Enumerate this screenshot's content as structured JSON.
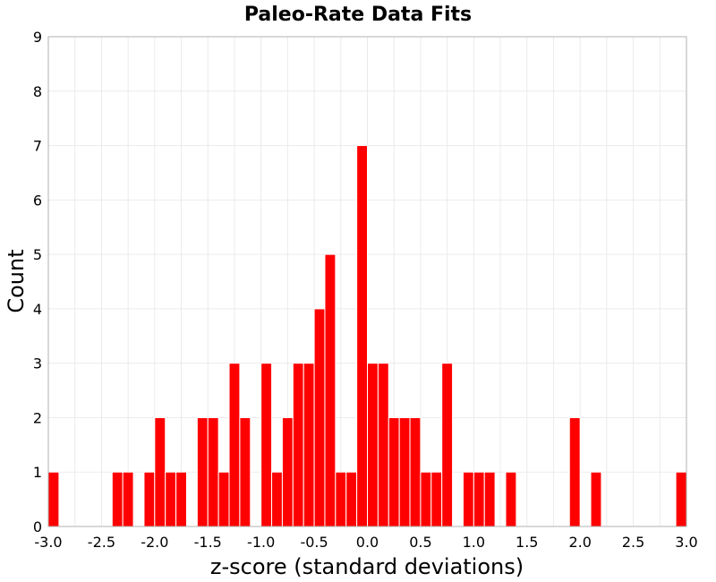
{
  "chart_data": {
    "type": "bar",
    "title": "Paleo-Rate Data Fits",
    "xlabel": "z-score (standard deviations)",
    "ylabel": "Count",
    "xlim": [
      -3.0,
      3.0
    ],
    "ylim": [
      0,
      9
    ],
    "bar_color": "#ff0000",
    "grid": true,
    "bin_width": 0.1,
    "x_ticks": [
      "-3.0",
      "-2.5",
      "-2.0",
      "-1.5",
      "-1.0",
      "-0.5",
      "0.0",
      "0.5",
      "1.0",
      "1.5",
      "2.0",
      "2.5",
      "3.0"
    ],
    "y_ticks": [
      "0",
      "1",
      "2",
      "3",
      "4",
      "5",
      "6",
      "7",
      "8",
      "9"
    ],
    "bins": [
      {
        "x": -2.95,
        "count": 1
      },
      {
        "x": -2.35,
        "count": 1
      },
      {
        "x": -2.25,
        "count": 1
      },
      {
        "x": -2.05,
        "count": 1
      },
      {
        "x": -1.95,
        "count": 2
      },
      {
        "x": -1.85,
        "count": 1
      },
      {
        "x": -1.75,
        "count": 1
      },
      {
        "x": -1.55,
        "count": 2
      },
      {
        "x": -1.45,
        "count": 2
      },
      {
        "x": -1.35,
        "count": 1
      },
      {
        "x": -1.25,
        "count": 3
      },
      {
        "x": -1.15,
        "count": 2
      },
      {
        "x": -0.95,
        "count": 3
      },
      {
        "x": -0.85,
        "count": 1
      },
      {
        "x": -0.75,
        "count": 2
      },
      {
        "x": -0.65,
        "count": 3
      },
      {
        "x": -0.55,
        "count": 3
      },
      {
        "x": -0.45,
        "count": 4
      },
      {
        "x": -0.35,
        "count": 5
      },
      {
        "x": -0.25,
        "count": 1
      },
      {
        "x": -0.15,
        "count": 1
      },
      {
        "x": -0.05,
        "count": 7
      },
      {
        "x": 0.05,
        "count": 3
      },
      {
        "x": 0.15,
        "count": 3
      },
      {
        "x": 0.25,
        "count": 2
      },
      {
        "x": 0.35,
        "count": 2
      },
      {
        "x": 0.45,
        "count": 2
      },
      {
        "x": 0.55,
        "count": 1
      },
      {
        "x": 0.65,
        "count": 1
      },
      {
        "x": 0.75,
        "count": 3
      },
      {
        "x": 0.95,
        "count": 1
      },
      {
        "x": 1.05,
        "count": 1
      },
      {
        "x": 1.15,
        "count": 1
      },
      {
        "x": 1.35,
        "count": 1
      },
      {
        "x": 1.95,
        "count": 2
      },
      {
        "x": 2.15,
        "count": 1
      },
      {
        "x": 2.95,
        "count": 1
      }
    ]
  }
}
